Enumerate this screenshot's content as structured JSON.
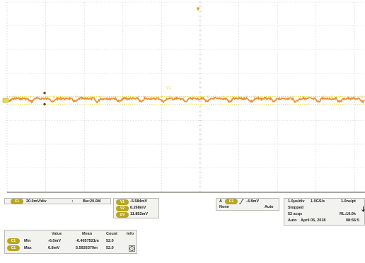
{
  "colors": {
    "background": "#ffffff",
    "grid": "#c7c7c2",
    "trace": "#e8741a",
    "trace_highlight": "#f2a33a",
    "cursor_line": "#e6d94a",
    "marker": "#7a4a10",
    "ch1_badge": "#b8a620",
    "panel": "#f2f2ef"
  },
  "channel_panel": {
    "ch_badge": "C1",
    "volts_per_div": "20.0mV/div",
    "bandwidth_symbol": "↕",
    "bandwidth": "Bw:20.0M"
  },
  "cursors": {
    "v1": {
      "badge": "V1",
      "value": "-5.584mV"
    },
    "v2": {
      "badge": "V2",
      "value": "6.268mV"
    },
    "delta": {
      "badge": "ΔV",
      "value": "11.852mV"
    }
  },
  "trigger": {
    "source_prefix": "A",
    "source_badge": "C1",
    "slope_icon": "rising-edge-icon",
    "level": "-4.8mV",
    "coupling": "None",
    "mode": "Auto"
  },
  "timebase": {
    "time_per_div": "1.0μs/div",
    "sample_rate": "1.0GS/s",
    "resolution": "1.0ns/pt",
    "status": "Stopped",
    "acqs": "52 acqs",
    "record_length": "RL:10.0k",
    "trigger_mode": "Auto",
    "date": "April 05, 2018",
    "time": "08:56:5"
  },
  "measurements": {
    "headers": [
      "Value",
      "Mean",
      "Count",
      "Info"
    ],
    "rows": [
      {
        "badge": "C1",
        "name": "Min",
        "value": "-6.0mV",
        "mean": "-6.4657521m",
        "count": "52.0"
      },
      {
        "badge": "C1",
        "name": "Max",
        "value": "6.8mV",
        "mean": "5.5926379m",
        "count": "52.0"
      }
    ],
    "info_icon": "clock-icon"
  },
  "screen": {
    "trigger_position_icon": "trigger-position-marker-icon",
    "channel_ground_icon": "channel-1-ground-marker-icon",
    "cursor_label": "V1"
  }
}
